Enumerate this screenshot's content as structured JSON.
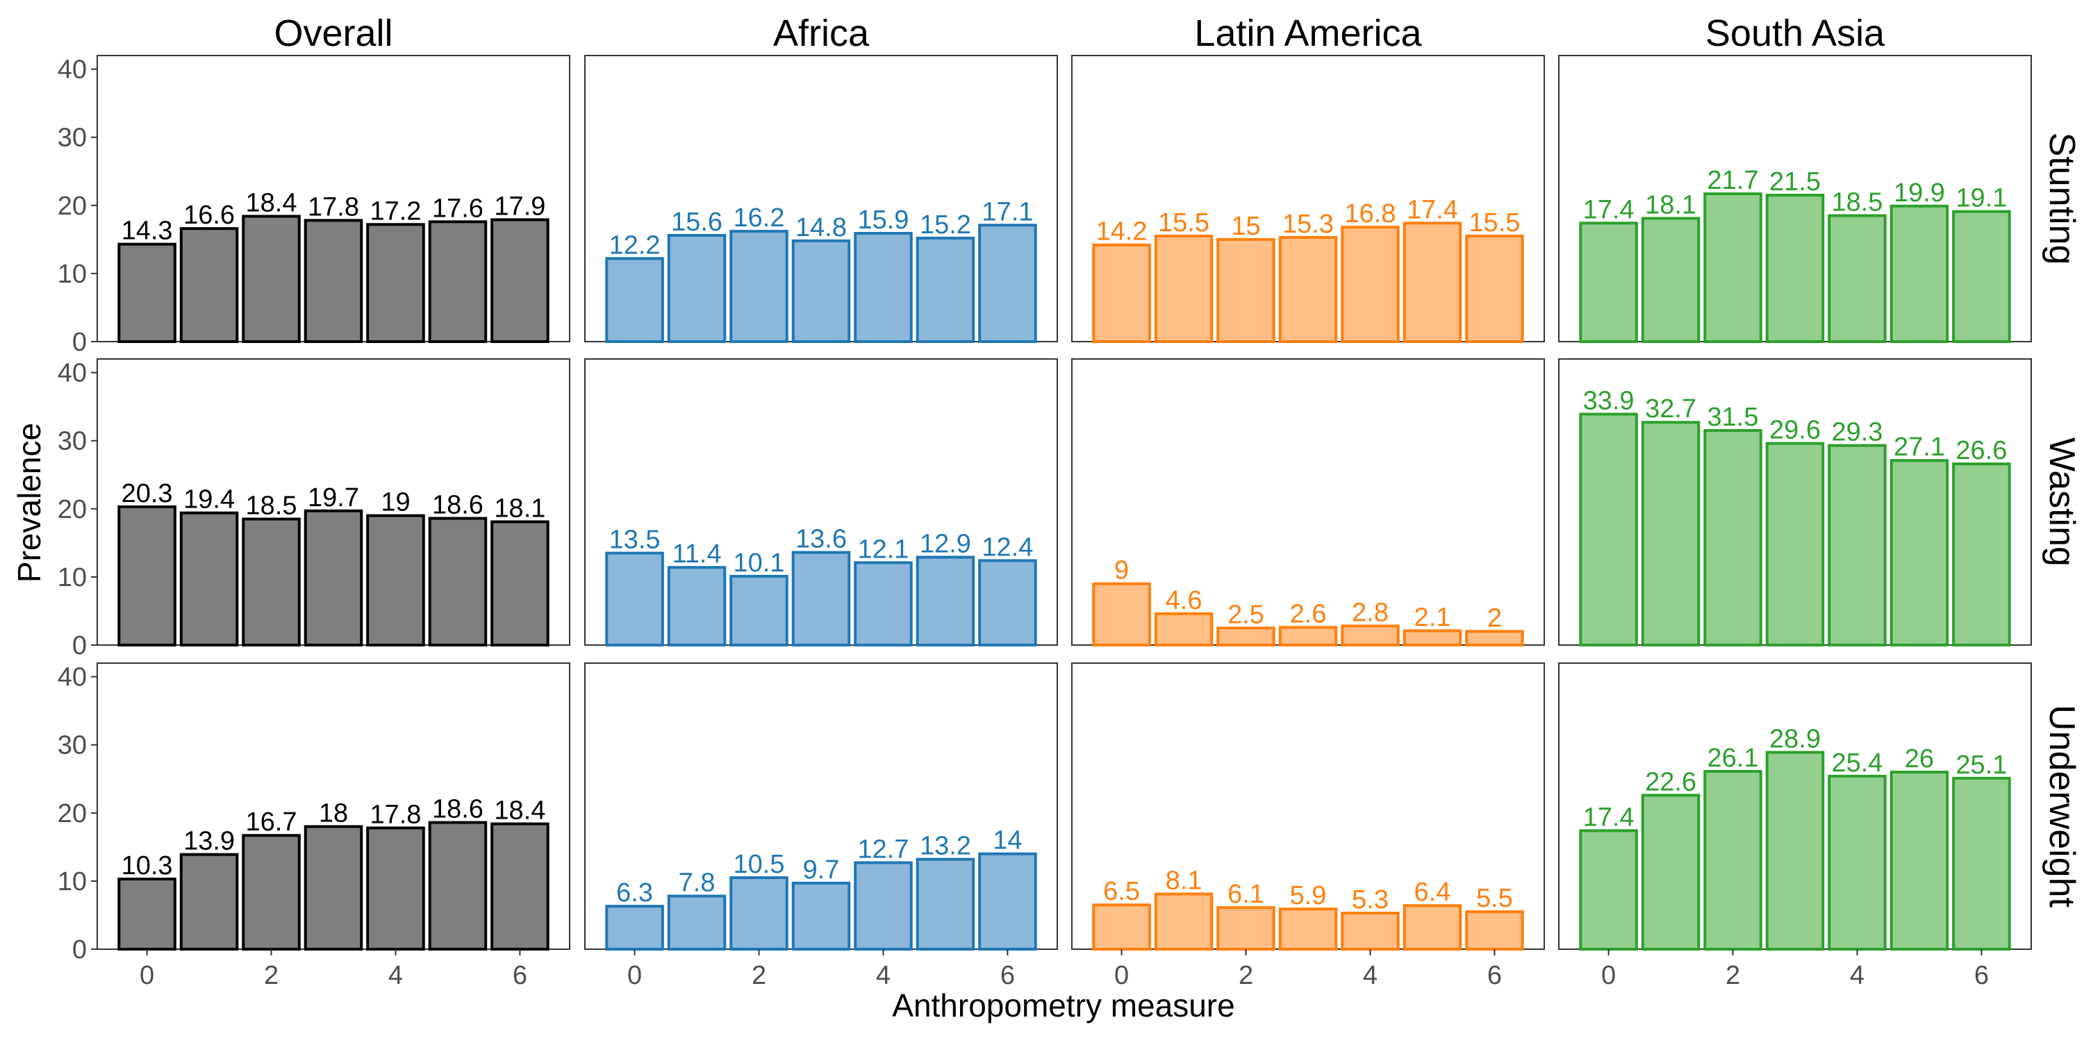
{
  "chart_data": {
    "type": "bar",
    "xlabel": "Anthropometry measure",
    "ylabel": "Prevalence",
    "x": [
      0,
      1,
      2,
      3,
      4,
      5,
      6
    ],
    "x_ticks": [
      "0",
      "2",
      "4",
      "6"
    ],
    "ylim": [
      0,
      42
    ],
    "y_ticks": [
      "0",
      "10",
      "20",
      "30",
      "40"
    ],
    "grid": false,
    "columns": [
      {
        "name": "Overall",
        "fill": "#7f7f7f",
        "stroke": "#000000",
        "label_color": "#000000"
      },
      {
        "name": "Africa",
        "fill": "#8db8d9",
        "stroke": "#1f77b4",
        "label_color": "#1f77b4"
      },
      {
        "name": "Latin America",
        "fill": "#ffbf86",
        "stroke": "#ff7f0e",
        "label_color": "#ff7f0e"
      },
      {
        "name": "South Asia",
        "fill": "#94cf90",
        "stroke": "#2ca02c",
        "label_color": "#2ca02c"
      }
    ],
    "rows": [
      "Stunting",
      "Wasting",
      "Underweight"
    ],
    "values": [
      [
        [
          14.3,
          16.6,
          18.4,
          17.8,
          17.2,
          17.6,
          17.9
        ],
        [
          12.2,
          15.6,
          16.2,
          14.8,
          15.9,
          15.2,
          17.1
        ],
        [
          14.2,
          15.5,
          15,
          15.3,
          16.8,
          17.4,
          15.5
        ],
        [
          17.4,
          18.1,
          21.7,
          21.5,
          18.5,
          19.9,
          19.1
        ]
      ],
      [
        [
          20.3,
          19.4,
          18.5,
          19.7,
          19,
          18.6,
          18.1
        ],
        [
          13.5,
          11.4,
          10.1,
          13.6,
          12.1,
          12.9,
          12.4
        ],
        [
          9,
          4.6,
          2.5,
          2.6,
          2.8,
          2.1,
          2
        ],
        [
          33.9,
          32.7,
          31.5,
          29.6,
          29.3,
          27.1,
          26.6
        ]
      ],
      [
        [
          10.3,
          13.9,
          16.7,
          18,
          17.8,
          18.6,
          18.4
        ],
        [
          6.3,
          7.8,
          10.5,
          9.7,
          12.7,
          13.2,
          14
        ],
        [
          6.5,
          8.1,
          6.1,
          5.9,
          5.3,
          6.4,
          5.5
        ],
        [
          17.4,
          22.6,
          26.1,
          28.9,
          25.4,
          26,
          25.1
        ]
      ]
    ]
  }
}
